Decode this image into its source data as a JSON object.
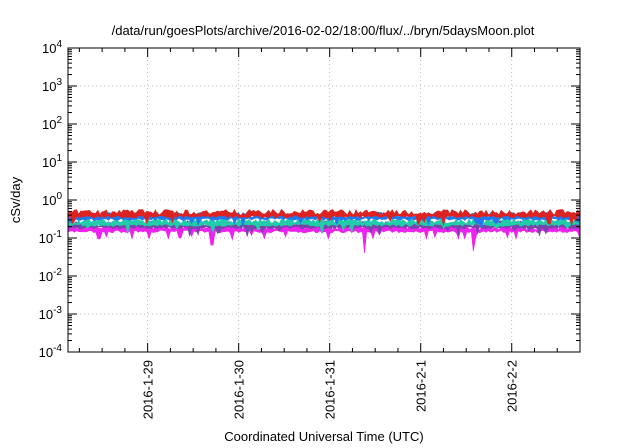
{
  "chart_data": {
    "type": "area",
    "title": "/data/run/goesPlots/archive/2016-02-02/18:00/flux/../bryn/5daysMoon.plot",
    "xlabel": "Coordinated Universal Time (UTC)",
    "ylabel": "cSv/day",
    "yscale": "log",
    "ylim": [
      0.0001,
      10000
    ],
    "xlim": [
      "2016-01-28 03:00",
      "2016-02-02 18:00"
    ],
    "x_ticks": [
      "2016-1-29",
      "2016-1-30",
      "2016-1-31",
      "2016-2-1",
      "2016-2-2"
    ],
    "y_ticks": [
      {
        "base": "10",
        "exp": "-4"
      },
      {
        "base": "10",
        "exp": "-3"
      },
      {
        "base": "10",
        "exp": "-2"
      },
      {
        "base": "10",
        "exp": "-1"
      },
      {
        "base": "10",
        "exp": "0"
      },
      {
        "base": "10",
        "exp": "1"
      },
      {
        "base": "10",
        "exp": "2"
      },
      {
        "base": "10",
        "exp": "3"
      },
      {
        "base": "10",
        "exp": "4"
      }
    ],
    "grid": true,
    "legend": "none",
    "series": [
      {
        "color": "#dd2222",
        "typical": 0.47,
        "low": 0.33
      },
      {
        "color": "#2277ee",
        "typical": 0.4,
        "low": 0.28
      },
      {
        "color": "#22ccaa",
        "typical": 0.28,
        "low": 0.21
      },
      {
        "color": "#7744aa",
        "typical": 0.24,
        "low": 0.18
      },
      {
        "color": "#ee22ee",
        "typical": 0.19,
        "low": 0.035
      }
    ],
    "dips": [
      {
        "x": "2016-01-29 17:00",
        "magenta": 0.065
      },
      {
        "x": "2016-01-31 09:00",
        "magenta": 0.04
      },
      {
        "x": "2016-02-01 14:00",
        "magenta": 0.045
      }
    ]
  }
}
